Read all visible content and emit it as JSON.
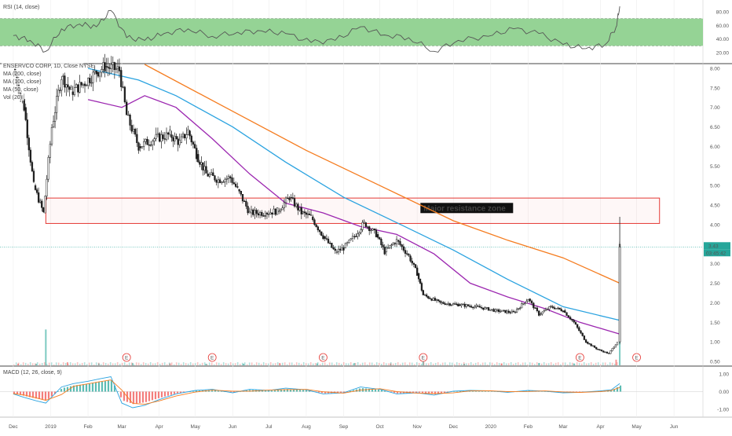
{
  "rsi_panel": {
    "label": "RSI (14, close)",
    "ticks": [
      "80.00",
      "60.00",
      "40.00",
      "20.00"
    ]
  },
  "price_panel": {
    "legend": [
      "ENSERVCO CORP, 1D, Close NYSE",
      "MA (200, close)",
      "MA (100, close)",
      "MA (50, close)",
      "Vol (20)"
    ],
    "ticks": [
      "8.00",
      "7.50",
      "7.00",
      "6.50",
      "6.00",
      "5.50",
      "5.00",
      "4.50",
      "4.00",
      "3.50",
      "3.00",
      "2.50",
      "2.00",
      "1.50",
      "1.00",
      "0.50"
    ],
    "last_price_badge": "3.43",
    "countdown_badge": "03:45:42",
    "annotation": "Major resistance zone",
    "resistance_zone": [
      4.03,
      4.68
    ],
    "earnings_markers": [
      "E",
      "E",
      "E",
      "E",
      "E",
      "E"
    ]
  },
  "macd_panel": {
    "label": "MACD (12, 26, close, 9)",
    "ticks": [
      "1.00",
      "0.00",
      "-1.00"
    ]
  },
  "x_axis": {
    "labels": [
      "Dec",
      "2019",
      "Feb",
      "Mar",
      "Apr",
      "May",
      "Jun",
      "Jul",
      "Aug",
      "Sep",
      "Oct",
      "Nov",
      "Dec",
      "2020",
      "Feb",
      "Mar",
      "Apr",
      "May",
      "Jun"
    ]
  },
  "colors": {
    "up": "#26a69a",
    "down": "#ef5350",
    "candle": "#1e1e1e",
    "ma200": "#f57c1f",
    "ma100": "#2ba3e0",
    "ma50": "#9c27b0",
    "rsi_band": "#8fd18f",
    "rsi_line": "#555555",
    "zone": "#e53935",
    "grid": "#eeeeee"
  },
  "chart_data": [
    {
      "type": "line",
      "title": "RSI (14, close)",
      "ylim": [
        5,
        95
      ],
      "bands": [
        30,
        70
      ],
      "series": [
        {
          "name": "RSI (14, close)",
          "x": [
            "2018-12-01",
            "2018-12-15",
            "2018-12-28",
            "2019-01-10",
            "2019-01-25",
            "2019-02-08",
            "2019-02-20",
            "2019-03-05",
            "2019-03-20",
            "2019-04-05",
            "2019-04-25",
            "2019-05-15",
            "2019-06-05",
            "2019-06-25",
            "2019-07-15",
            "2019-08-05",
            "2019-08-25",
            "2019-09-15",
            "2019-10-05",
            "2019-10-25",
            "2019-11-15",
            "2019-12-05",
            "2019-12-30",
            "2020-01-20",
            "2020-02-10",
            "2020-03-01",
            "2020-03-20",
            "2020-04-05",
            "2020-04-14",
            "2020-04-17"
          ],
          "values": [
            45,
            38,
            22,
            55,
            62,
            58,
            82,
            42,
            38,
            48,
            55,
            44,
            50,
            52,
            48,
            35,
            38,
            58,
            46,
            42,
            22,
            38,
            44,
            55,
            48,
            32,
            26,
            32,
            58,
            88
          ]
        }
      ]
    },
    {
      "type": "line",
      "title": "ENSERVCO CORP, 1D, Close NYSE",
      "ylim": [
        0.4,
        8.1
      ],
      "series": [
        {
          "name": "MA (200, close)",
          "x": [
            "2019-03-20",
            "2019-06-01",
            "2019-08-01",
            "2019-10-01",
            "2019-12-01",
            "2020-01-15",
            "2020-03-01",
            "2020-04-17"
          ],
          "values": [
            8.1,
            6.9,
            5.9,
            5.0,
            4.1,
            3.6,
            3.15,
            2.5
          ]
        },
        {
          "name": "MA (100, close)",
          "x": [
            "2019-02-01",
            "2019-03-15",
            "2019-04-15",
            "2019-06-01",
            "2019-07-15",
            "2019-09-01",
            "2019-10-15",
            "2019-12-01",
            "2020-01-15",
            "2020-03-01",
            "2020-04-17"
          ],
          "values": [
            8.0,
            7.7,
            7.3,
            6.5,
            5.6,
            4.7,
            4.05,
            3.35,
            2.6,
            1.9,
            1.55
          ]
        },
        {
          "name": "MA (50, close)",
          "x": [
            "2019-02-01",
            "2019-03-01",
            "2019-03-20",
            "2019-04-15",
            "2019-05-15",
            "2019-06-15",
            "2019-07-15",
            "2019-08-15",
            "2019-09-15",
            "2019-10-15",
            "2019-11-15",
            "2019-12-15",
            "2020-01-15",
            "2020-02-15",
            "2020-03-15",
            "2020-04-17"
          ],
          "values": [
            7.2,
            7.0,
            7.3,
            7.0,
            6.2,
            5.3,
            4.55,
            4.3,
            3.95,
            3.75,
            3.25,
            2.5,
            2.15,
            1.85,
            1.5,
            1.2
          ]
        },
        {
          "name": "ENSERVCO CORP, 1D, Close NYSE",
          "x": [
            "2018-12-01",
            "2018-12-10",
            "2018-12-18",
            "2018-12-26",
            "2019-01-02",
            "2019-01-10",
            "2019-01-18",
            "2019-01-28",
            "2019-02-08",
            "2019-02-15",
            "2019-02-27",
            "2019-03-05",
            "2019-03-15",
            "2019-03-28",
            "2019-04-10",
            "2019-04-18",
            "2019-04-25",
            "2019-05-02",
            "2019-05-10",
            "2019-05-20",
            "2019-05-30",
            "2019-06-05",
            "2019-06-15",
            "2019-06-28",
            "2019-07-08",
            "2019-07-18",
            "2019-07-28",
            "2019-08-05",
            "2019-08-15",
            "2019-08-25",
            "2019-09-01",
            "2019-09-10",
            "2019-09-18",
            "2019-09-28",
            "2019-10-05",
            "2019-10-15",
            "2019-10-25",
            "2019-11-01",
            "2019-11-06",
            "2019-11-20",
            "2019-12-05",
            "2019-12-20",
            "2020-01-05",
            "2020-01-20",
            "2020-02-01",
            "2020-02-10",
            "2020-02-20",
            "2020-03-01",
            "2020-03-10",
            "2020-03-20",
            "2020-03-30",
            "2020-04-08",
            "2020-04-15",
            "2020-04-17"
          ],
          "values": [
            8.0,
            7.0,
            5.0,
            4.3,
            6.5,
            7.8,
            7.4,
            7.6,
            7.9,
            8.05,
            7.95,
            6.8,
            6.0,
            6.2,
            6.3,
            6.1,
            6.4,
            5.8,
            5.3,
            5.15,
            5.2,
            4.9,
            4.3,
            4.3,
            4.35,
            4.7,
            4.3,
            4.2,
            3.7,
            3.3,
            3.4,
            3.7,
            4.05,
            3.75,
            3.3,
            3.6,
            3.2,
            2.75,
            2.2,
            2.0,
            1.95,
            1.9,
            1.8,
            1.75,
            2.1,
            1.7,
            1.9,
            1.8,
            1.5,
            1.0,
            0.8,
            0.7,
            1.0,
            3.43
          ]
        }
      ]
    },
    {
      "type": "bar",
      "title": "Vol (20)",
      "x": [
        "2018-12-05",
        "2018-12-20",
        "2018-12-28",
        "2019-01-15",
        "2019-02-10",
        "2019-03-10",
        "2019-04-10",
        "2019-05-10",
        "2019-06-10",
        "2019-07-10",
        "2019-08-10",
        "2019-09-10",
        "2019-10-10",
        "2019-11-06",
        "2019-12-10",
        "2020-01-10",
        "2020-02-10",
        "2020-03-10",
        "2020-04-14",
        "2020-04-17"
      ],
      "values": [
        0.04,
        0.04,
        0.95,
        0.08,
        0.05,
        0.06,
        0.05,
        0.04,
        0.04,
        0.06,
        0.05,
        0.06,
        0.05,
        0.2,
        0.04,
        0.05,
        0.06,
        0.05,
        0.15,
        1.0
      ]
    },
    {
      "type": "bar",
      "title": "MACD (12, 26, close, 9)",
      "ylim": [
        -1.4,
        1.4
      ],
      "x": [
        "2018-12-01",
        "2018-12-10",
        "2018-12-20",
        "2018-12-28",
        "2019-01-10",
        "2019-01-20",
        "2019-02-01",
        "2019-02-10",
        "2019-02-20",
        "2019-03-01",
        "2019-03-10",
        "2019-03-20",
        "2019-04-01",
        "2019-04-15",
        "2019-05-01",
        "2019-05-15",
        "2019-06-01",
        "2019-06-15",
        "2019-07-01",
        "2019-07-15",
        "2019-08-01",
        "2019-08-15",
        "2019-09-01",
        "2019-09-15",
        "2019-10-01",
        "2019-10-15",
        "2019-11-01",
        "2019-11-15",
        "2019-12-01",
        "2019-12-15",
        "2020-01-01",
        "2020-01-15",
        "2020-02-01",
        "2020-02-15",
        "2020-03-01",
        "2020-03-15",
        "2020-04-01",
        "2020-04-10",
        "2020-04-17"
      ],
      "values": [
        -0.1,
        -0.25,
        -0.4,
        -0.5,
        0.2,
        0.35,
        0.45,
        0.55,
        0.65,
        -0.5,
        -0.7,
        -0.6,
        -0.35,
        -0.1,
        0.05,
        0.1,
        -0.05,
        0.1,
        0.05,
        0.15,
        0.08,
        -0.1,
        -0.05,
        0.2,
        0.1,
        -0.1,
        -0.05,
        -0.15,
        0.02,
        0.05,
        0.03,
        -0.03,
        0.05,
        0.02,
        -0.05,
        -0.03,
        0.03,
        0.08,
        0.35
      ]
    }
  ]
}
